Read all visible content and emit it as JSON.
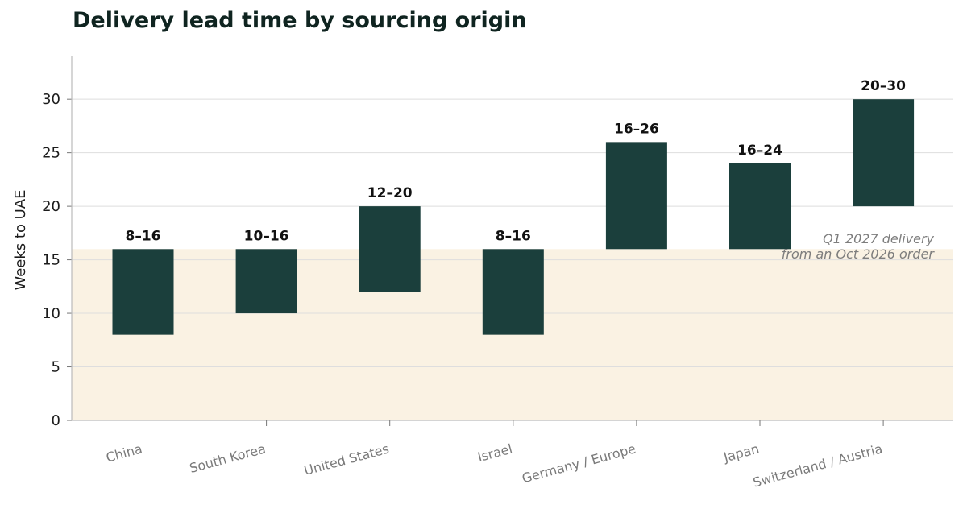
{
  "chart_data": {
    "type": "bar",
    "title": "Delivery lead time by sourcing origin",
    "ylabel": "Weeks to UAE",
    "xlabel": "",
    "ylim": [
      0,
      34
    ],
    "yticks": [
      0,
      5,
      10,
      15,
      20,
      25,
      30
    ],
    "grid": true,
    "categories": [
      "China",
      "South Korea",
      "United States",
      "Israel",
      "Germany / Europe",
      "Japan",
      "Switzerland / Austria"
    ],
    "series": [
      {
        "low": [
          8,
          10,
          12,
          8,
          16,
          16,
          20
        ],
        "high": [
          16,
          16,
          20,
          16,
          26,
          24,
          30
        ],
        "labels": [
          "8–16",
          "10–16",
          "12–20",
          "8–16",
          "16–26",
          "16–24",
          "20–30"
        ]
      }
    ],
    "highlight_band": {
      "from": 0,
      "to": 16,
      "label_lines": [
        "Q1 2027 delivery",
        "from an Oct 2026 order"
      ]
    },
    "colors": {
      "bar": "#1b3f3c",
      "band": "#faf2e3",
      "grid": "#dedede",
      "title": "#0f2420"
    }
  }
}
